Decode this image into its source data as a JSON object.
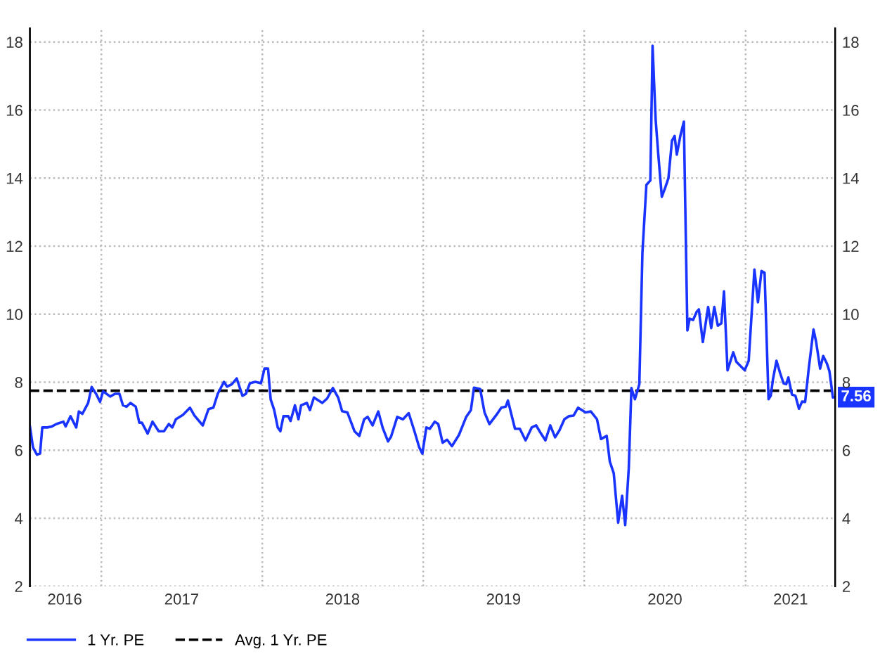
{
  "chart_data": {
    "type": "line",
    "x": [
      "2016-07-23",
      "2016-07-30",
      "2016-08-08",
      "2016-08-15",
      "2016-08-20",
      "2016-08-31",
      "2016-09-11",
      "2016-09-21",
      "2016-10-07",
      "2016-10-12",
      "2016-10-23",
      "2016-11-05",
      "2016-11-11",
      "2016-11-19",
      "2016-12-02",
      "2016-12-10",
      "2016-12-20",
      "2016-12-29",
      "2017-01-05",
      "2017-01-21",
      "2017-02-01",
      "2017-02-11",
      "2017-02-19",
      "2017-02-27",
      "2017-03-08",
      "2017-03-20",
      "2017-03-28",
      "2017-04-03",
      "2017-04-16",
      "2017-04-27",
      "2017-05-11",
      "2017-05-23",
      "2017-06-03",
      "2017-06-11",
      "2017-06-19",
      "2017-07-05",
      "2017-07-21",
      "2017-07-31",
      "2017-08-19",
      "2017-09-01",
      "2017-09-12",
      "2017-09-22",
      "2017-10-06",
      "2017-10-13",
      "2017-10-24",
      "2017-11-04",
      "2017-11-17",
      "2017-11-25",
      "2017-12-04",
      "2017-12-16",
      "2017-12-29",
      "2018-01-06",
      "2018-01-14",
      "2018-01-20",
      "2018-01-28",
      "2018-02-05",
      "2018-02-11",
      "2018-02-18",
      "2018-03-01",
      "2018-03-06",
      "2018-03-16",
      "2018-03-24",
      "2018-03-30",
      "2018-04-12",
      "2018-04-19",
      "2018-04-28",
      "2018-05-17",
      "2018-05-28",
      "2018-06-10",
      "2018-06-22",
      "2018-07-01",
      "2018-07-13",
      "2018-07-29",
      "2018-08-09",
      "2018-08-20",
      "2018-08-28",
      "2018-09-08",
      "2018-09-21",
      "2018-10-01",
      "2018-10-13",
      "2018-10-20",
      "2018-11-03",
      "2018-11-16",
      "2018-11-29",
      "2018-12-12",
      "2018-12-23",
      "2018-12-30",
      "2019-01-08",
      "2019-01-16",
      "2019-01-27",
      "2019-02-04",
      "2019-02-14",
      "2019-02-24",
      "2019-03-07",
      "2019-03-23",
      "2019-04-08",
      "2019-04-19",
      "2019-04-26",
      "2019-05-10",
      "2019-05-20",
      "2019-05-31",
      "2019-06-16",
      "2019-06-27",
      "2019-07-07",
      "2019-07-12",
      "2019-07-28",
      "2019-08-08",
      "2019-08-21",
      "2019-09-04",
      "2019-09-14",
      "2019-09-25",
      "2019-10-05",
      "2019-10-16",
      "2019-10-27",
      "2019-11-06",
      "2019-11-17",
      "2019-11-27",
      "2019-12-08",
      "2019-12-18",
      "2020-01-04",
      "2020-01-16",
      "2020-01-30",
      "2020-02-08",
      "2020-02-21",
      "2020-02-28",
      "2020-03-08",
      "2020-03-18",
      "2020-03-27",
      "2020-04-03",
      "2020-04-11",
      "2020-04-17",
      "2020-04-25",
      "2020-05-05",
      "2020-05-12",
      "2020-05-21",
      "2020-05-30",
      "2020-06-04",
      "2020-06-11",
      "2020-06-17",
      "2020-06-25",
      "2020-07-03",
      "2020-07-10",
      "2020-07-18",
      "2020-07-24",
      "2020-07-29",
      "2020-08-06",
      "2020-08-14",
      "2020-08-17",
      "2020-08-22",
      "2020-08-27",
      "2020-09-04",
      "2020-09-12",
      "2020-09-17",
      "2020-09-26",
      "2020-10-08",
      "2020-10-15",
      "2020-10-22",
      "2020-10-30",
      "2020-11-07",
      "2020-11-13",
      "2020-11-21",
      "2020-12-04",
      "2020-12-11",
      "2020-12-30",
      "2021-01-08",
      "2021-01-21",
      "2021-01-29",
      "2021-02-06",
      "2021-02-13",
      "2021-02-22",
      "2021-02-27",
      "2021-03-04",
      "2021-03-12",
      "2021-03-20",
      "2021-03-28",
      "2021-04-03",
      "2021-04-08",
      "2021-04-16",
      "2021-04-24",
      "2021-05-02",
      "2021-05-09",
      "2021-05-16",
      "2021-05-24",
      "2021-06-04",
      "2021-06-10",
      "2021-06-19",
      "2021-06-26",
      "2021-07-04",
      "2021-07-10",
      "2021-07-18",
      "2021-07-23"
    ],
    "series": [
      {
        "name": "1 Yr. PE",
        "color": "#1a34ff",
        "values": [
          6.7,
          6.08,
          5.87,
          5.9,
          6.67,
          6.67,
          6.7,
          6.77,
          6.84,
          6.7,
          7.0,
          6.67,
          7.14,
          7.07,
          7.39,
          7.86,
          7.66,
          7.42,
          7.73,
          7.58,
          7.66,
          7.66,
          7.32,
          7.28,
          7.39,
          7.28,
          6.81,
          6.81,
          6.49,
          6.84,
          6.56,
          6.56,
          6.77,
          6.67,
          6.91,
          7.04,
          7.25,
          7.02,
          6.73,
          7.21,
          7.25,
          7.66,
          8.01,
          7.87,
          7.94,
          8.11,
          7.6,
          7.66,
          7.97,
          8.01,
          7.97,
          8.4,
          8.4,
          7.49,
          7.18,
          6.67,
          6.56,
          7.0,
          7.0,
          6.86,
          7.32,
          6.91,
          7.32,
          7.39,
          7.18,
          7.55,
          7.39,
          7.52,
          7.83,
          7.55,
          7.15,
          7.11,
          6.56,
          6.42,
          6.91,
          6.98,
          6.73,
          7.14,
          6.66,
          6.26,
          6.4,
          6.98,
          6.91,
          7.09,
          6.56,
          6.08,
          5.9,
          6.67,
          6.63,
          6.84,
          6.77,
          6.22,
          6.31,
          6.12,
          6.45,
          6.97,
          7.18,
          7.84,
          7.8,
          7.11,
          6.77,
          7.04,
          7.25,
          7.28,
          7.46,
          6.63,
          6.63,
          6.29,
          6.67,
          6.73,
          6.49,
          6.29,
          6.73,
          6.38,
          6.59,
          6.91,
          7.0,
          7.02,
          7.25,
          7.11,
          7.14,
          6.91,
          6.33,
          6.42,
          5.67,
          5.32,
          3.87,
          4.66,
          3.8,
          5.46,
          7.83,
          7.5,
          7.94,
          11.8,
          13.8,
          13.93,
          17.89,
          15.72,
          14.69,
          13.45,
          13.73,
          14.0,
          15.1,
          15.24,
          14.69,
          15.24,
          15.66,
          13.31,
          9.52,
          9.87,
          9.83,
          10.07,
          10.14,
          9.18,
          10.21,
          9.59,
          10.21,
          9.66,
          9.73,
          10.67,
          8.35,
          8.88,
          8.6,
          8.35,
          8.63,
          11.31,
          10.35,
          11.27,
          11.22,
          7.5,
          7.6,
          8.08,
          8.63,
          8.28,
          7.97,
          7.94,
          8.14,
          7.64,
          7.6,
          7.22,
          7.43,
          7.42,
          8.38,
          9.55,
          9.18,
          8.4,
          8.77,
          8.56,
          8.33,
          7.55,
          7.56
        ]
      }
    ],
    "xlim": [
      "2016-07-23",
      "2021-07-23"
    ],
    "xticks": [
      {
        "value": "2016-10-10",
        "label": "2016"
      },
      {
        "value": "2017-01-01",
        "label": null
      },
      {
        "value": "2017-07-02",
        "label": "2017"
      },
      {
        "value": "2018-01-01",
        "label": null
      },
      {
        "value": "2018-07-02",
        "label": "2018"
      },
      {
        "value": "2019-01-01",
        "label": null
      },
      {
        "value": "2019-07-02",
        "label": "2019"
      },
      {
        "value": "2020-01-01",
        "label": null
      },
      {
        "value": "2020-07-02",
        "label": "2020"
      },
      {
        "value": "2021-01-01",
        "label": null
      },
      {
        "value": "2021-04-13",
        "label": "2021"
      }
    ],
    "ylim": [
      2,
      18.4
    ],
    "yticks": [
      2,
      4,
      6,
      8,
      10,
      12,
      14,
      16,
      18
    ],
    "y2lim": [
      2,
      18.4
    ],
    "y2ticks": [
      2,
      4,
      6,
      8,
      10,
      12,
      14,
      16,
      18
    ],
    "ref_lines": [
      {
        "axis": "y",
        "value": 7.75,
        "label": "Avg. 1 Yr. PE",
        "color": "#000000",
        "line_style": "dashed"
      }
    ],
    "annotations": [
      {
        "text": "7.56",
        "x": "2021-07-23",
        "y": 7.56
      }
    ],
    "grid": true,
    "legend": "bottom left",
    "marker": "none",
    "line_style": "solid"
  }
}
